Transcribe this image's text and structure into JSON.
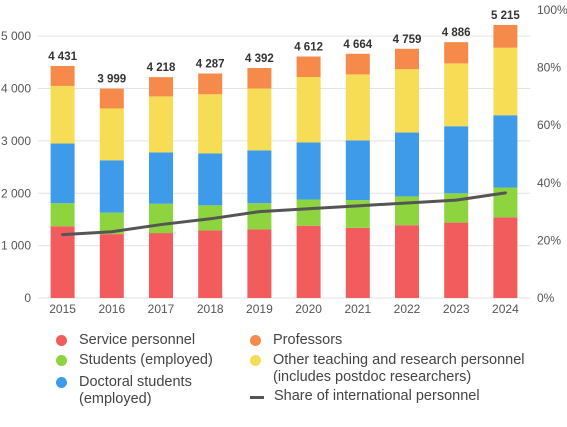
{
  "chart_data": {
    "type": "bar",
    "stacked": true,
    "categories": [
      "2015",
      "2016",
      "2017",
      "2018",
      "2019",
      "2020",
      "2021",
      "2022",
      "2023",
      "2024"
    ],
    "totals": [
      "4 431",
      "3 999",
      "4 218",
      "4 287",
      "4 392",
      "4 612",
      "4 664",
      "4 759",
      "4 886",
      "5 215"
    ],
    "ylim": [
      0,
      5500
    ],
    "yticks": [
      "0",
      "1 000",
      "2 000",
      "3 000",
      "4 000",
      "5 000"
    ],
    "ytick_values": [
      0,
      1000,
      2000,
      3000,
      4000,
      5000
    ],
    "y2lim": [
      0,
      100
    ],
    "y2ticks": [
      "0%",
      "20%",
      "40%",
      "60%",
      "80%",
      "100%"
    ],
    "y2tick_values": [
      0,
      20,
      40,
      60,
      80,
      100
    ],
    "series": [
      {
        "name": "Service personnel",
        "color": "#f25c5c",
        "values": [
          1370,
          1220,
          1240,
          1290,
          1310,
          1380,
          1340,
          1390,
          1440,
          1540
        ]
      },
      {
        "name": "Students (employed)",
        "color": "#8ed43f",
        "values": [
          440,
          410,
          560,
          480,
          500,
          500,
          530,
          550,
          560,
          570
        ]
      },
      {
        "name": "Doctoral students\n(employed)",
        "color": "#3d9be9",
        "values": [
          1140,
          1000,
          980,
          990,
          1010,
          1090,
          1140,
          1220,
          1280,
          1380
        ]
      },
      {
        "name": "Other teaching and research personnel\n(includes postdoc researchers)",
        "color": "#f7dc55",
        "values": [
          1100,
          990,
          1070,
          1130,
          1180,
          1250,
          1260,
          1210,
          1200,
          1290
        ]
      },
      {
        "name": "Professors",
        "color": "#f58a4b",
        "values": [
          381,
          379,
          368,
          397,
          392,
          392,
          394,
          389,
          406,
          435
        ]
      }
    ],
    "line": {
      "name": "Share of international personnel",
      "color": "#555555",
      "axis": "right",
      "values": [
        22,
        23,
        25.5,
        27.5,
        30,
        31,
        32,
        33,
        34,
        36.5
      ]
    }
  },
  "legend": {
    "service": "Service personnel",
    "students": "Students (employed)",
    "doctoral": "Doctoral students\n(employed)",
    "professors": "Professors",
    "other": "Other teaching and research personnel\n(includes postdoc researchers)",
    "share": "Share of international personnel"
  },
  "colors": {
    "service": "#f25c5c",
    "students": "#8ed43f",
    "doctoral": "#3d9be9",
    "professors": "#f58a4b",
    "other": "#f7dc55",
    "share": "#555555",
    "grid": "#e3e3e3",
    "tick_text": "#555555",
    "total_text": "#333333"
  }
}
